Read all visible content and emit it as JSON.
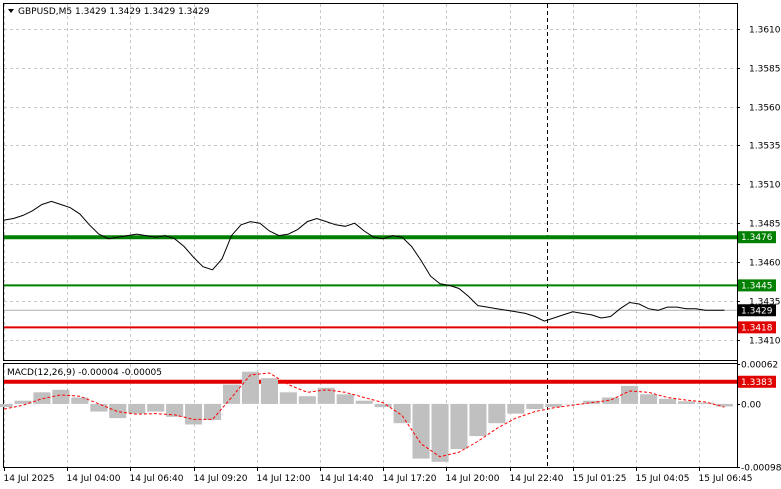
{
  "header": {
    "symbol_line": "GBPUSD,M5  1.3429 1.3429 1.3429 1.3429",
    "macd_line": "MACD(12,26,9) -0.00004 -0.00005"
  },
  "colors": {
    "background": "#ffffff",
    "grid": "#c8c8c8",
    "price": "#000000",
    "resistance": "#008000",
    "support": "#e00000",
    "macd_hist": "#c0c0c0",
    "macd_signal": "#ff0000",
    "current_tag": "#000000"
  },
  "chart_data": [
    {
      "type": "line",
      "name": "GBPUSD M5",
      "ylim": [
        1.3397,
        1.3626
      ],
      "y_ticks": [
        "1.3610",
        "1.3585",
        "1.3560",
        "1.3535",
        "1.3510",
        "1.3485",
        "1.3460",
        "1.3435",
        "1.3410"
      ],
      "x_ticks": [
        "14 Jul 2025",
        "14 Jul 04:00",
        "14 Jul 06:40",
        "14 Jul 09:20",
        "14 Jul 12:00",
        "14 Jul 14:40",
        "14 Jul 17:20",
        "14 Jul 20:00",
        "14 Jul 22:40",
        "15 Jul 01:25",
        "15 Jul 04:05",
        "15 Jul 06:45"
      ],
      "x_range": [
        0,
        11.6
      ],
      "vertical_marker_x": 8.6,
      "levels": [
        {
          "value": 1.3476,
          "label": "1.3476",
          "role": "resistance",
          "thick": true
        },
        {
          "value": 1.3445,
          "label": "1.3445",
          "role": "resistance",
          "thick": false
        },
        {
          "value": 1.3418,
          "label": "1.3418",
          "role": "support",
          "thick": false
        },
        {
          "value": 1.3383,
          "label": "1.3383",
          "role": "support",
          "thick": true
        }
      ],
      "current_price": {
        "value": 1.3429,
        "label": "1.3429"
      },
      "series": [
        {
          "x": [
            0,
            0.15,
            0.3,
            0.45,
            0.6,
            0.75,
            0.9,
            1.05,
            1.2,
            1.35,
            1.5,
            1.65,
            1.8,
            1.95,
            2.1,
            2.25,
            2.4,
            2.55,
            2.7,
            2.85,
            3.0,
            3.15,
            3.3,
            3.45,
            3.6,
            3.75,
            3.9,
            4.05,
            4.2,
            4.35,
            4.5,
            4.65,
            4.8,
            4.95,
            5.1,
            5.25,
            5.4,
            5.55,
            5.7,
            5.85,
            6.0,
            6.15,
            6.3,
            6.45,
            6.6,
            6.75,
            6.9,
            7.05,
            7.2,
            7.35,
            7.5,
            7.65,
            7.8,
            7.95,
            8.1,
            8.25,
            8.4,
            8.55,
            8.7,
            8.85,
            9.0,
            9.15,
            9.3,
            9.45,
            9.6,
            9.75,
            9.9,
            10.05,
            10.2,
            10.35,
            10.5,
            10.65,
            10.8,
            10.95,
            11.1,
            11.25,
            11.4
          ],
          "values": [
            1.3487,
            1.3488,
            1.349,
            1.3493,
            1.3497,
            1.3499,
            1.3497,
            1.3495,
            1.3491,
            1.3484,
            1.3478,
            1.3475,
            1.3476,
            1.3477,
            1.3478,
            1.3477,
            1.3476,
            1.3477,
            1.3475,
            1.347,
            1.3463,
            1.3457,
            1.3455,
            1.3462,
            1.3477,
            1.3484,
            1.3486,
            1.3485,
            1.348,
            1.3477,
            1.3478,
            1.3481,
            1.3486,
            1.3488,
            1.3486,
            1.3484,
            1.3483,
            1.3485,
            1.348,
            1.3476,
            1.3475,
            1.3477,
            1.3476,
            1.347,
            1.3461,
            1.3451,
            1.3446,
            1.3445,
            1.3443,
            1.3438,
            1.3432,
            1.3431,
            1.343,
            1.3429,
            1.3428,
            1.3427,
            1.3425,
            1.3422,
            1.3424,
            1.3426,
            1.3428,
            1.3427,
            1.3426,
            1.3424,
            1.3425,
            1.343,
            1.3434,
            1.3433,
            1.343,
            1.3429,
            1.3431,
            1.3431,
            1.343,
            1.343,
            1.3429,
            1.3429,
            1.3429
          ]
        }
      ]
    },
    {
      "type": "bar",
      "name": "MACD(12,26,9)",
      "ylim": [
        -0.00098,
        0.00062
      ],
      "y_ticks": [
        "0.00062",
        "0.00",
        "-0.00098"
      ],
      "x_range": [
        0,
        11.6
      ],
      "x": [
        0,
        0.3,
        0.6,
        0.9,
        1.2,
        1.5,
        1.8,
        2.1,
        2.4,
        2.7,
        3.0,
        3.3,
        3.6,
        3.9,
        4.2,
        4.5,
        4.8,
        5.1,
        5.4,
        5.7,
        6.0,
        6.3,
        6.6,
        6.9,
        7.2,
        7.5,
        7.8,
        8.1,
        8.4,
        8.7,
        9.0,
        9.3,
        9.6,
        9.9,
        10.2,
        10.5,
        10.8,
        11.1,
        11.4
      ],
      "histogram": [
        -5e-05,
        5e-05,
        0.00018,
        0.00022,
        0.0001,
        -0.00012,
        -0.00022,
        -0.00015,
        -0.00012,
        -0.0002,
        -0.00032,
        -0.00025,
        0.0003,
        0.0005,
        0.0004,
        0.00018,
        0.00012,
        0.00025,
        0.00015,
        5e-05,
        -5e-05,
        -0.0003,
        -0.00085,
        -0.0009,
        -0.0007,
        -0.0005,
        -0.0003,
        -0.00015,
        -8e-05,
        -5e-05,
        0.0,
        5e-05,
        0.0001,
        0.00028,
        0.00015,
        8e-05,
        4e-05,
        2e-05,
        -4e-05
      ],
      "signal": [
        -8e-05,
        -2e-05,
        8e-05,
        0.00014,
        0.00012,
        0.0,
        -0.00012,
        -0.00016,
        -0.00015,
        -0.00017,
        -0.00024,
        -0.00024,
        0.0001,
        0.00045,
        0.00048,
        0.0003,
        0.00018,
        0.00022,
        0.00018,
        0.0001,
        2e-05,
        -0.00018,
        -0.00062,
        -0.00082,
        -0.00075,
        -0.00058,
        -0.00038,
        -0.00022,
        -0.00012,
        -6e-05,
        -2e-05,
        2e-05,
        6e-05,
        0.0002,
        0.00018,
        0.0001,
        6e-05,
        3e-05,
        -5e-05
      ]
    }
  ]
}
